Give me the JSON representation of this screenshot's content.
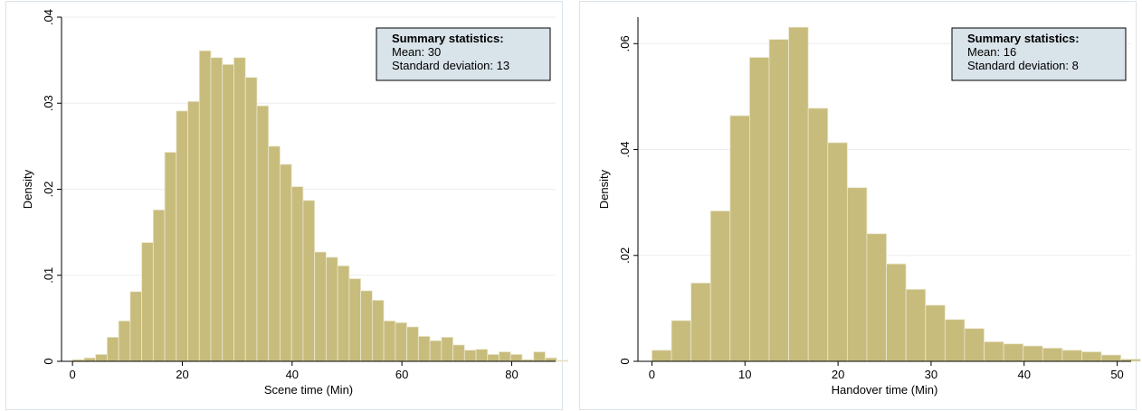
{
  "chart_data": [
    {
      "type": "bar",
      "title": "",
      "xlabel": "Scene time (Min)",
      "ylabel": "Density",
      "xlim": [
        -2,
        88
      ],
      "ylim": [
        0,
        0.04
      ],
      "x_ticks": [
        0,
        20,
        40,
        60,
        80
      ],
      "x_tick_labels": [
        "0",
        "20",
        "40",
        "60",
        "80"
      ],
      "y_ticks": [
        0,
        0.01,
        0.02,
        0.03,
        0.04
      ],
      "y_tick_labels": [
        "0",
        ".01",
        ".02",
        ".03",
        ".04"
      ],
      "grid": true,
      "bar_color": "#c8bc7c",
      "bin_start": 0,
      "bin_width": 2.1,
      "values": [
        0.0002,
        0.0004,
        0.0008,
        0.0028,
        0.0047,
        0.0081,
        0.0138,
        0.0176,
        0.0243,
        0.0291,
        0.0302,
        0.0361,
        0.0353,
        0.0345,
        0.0353,
        0.033,
        0.0297,
        0.025,
        0.0229,
        0.0203,
        0.0187,
        0.0127,
        0.0121,
        0.0111,
        0.0096,
        0.0082,
        0.0071,
        0.0047,
        0.0045,
        0.004,
        0.0029,
        0.0024,
        0.0028,
        0.0019,
        0.0013,
        0.0014,
        0.0008,
        0.0011,
        0.0008,
        0.0002,
        0.0011,
        0.0004,
        0.0001,
        0.0003,
        0.0001
      ],
      "summary": {
        "heading": "Summary statistics:",
        "lines": [
          "Mean: 30",
          "Standard deviation: 13"
        ]
      },
      "legend_placement": "top-right",
      "summary_box_color": "#d9e3ea"
    },
    {
      "type": "bar",
      "title": "",
      "xlabel": "Handover time (Min)",
      "ylabel": "Density",
      "xlim": [
        -1.5,
        51.5
      ],
      "ylim": [
        0,
        0.065
      ],
      "x_ticks": [
        0,
        10,
        20,
        30,
        40,
        50
      ],
      "x_tick_labels": [
        "0",
        "10",
        "20",
        "30",
        "40",
        "50"
      ],
      "y_ticks": [
        0,
        0.02,
        0.04,
        0.06
      ],
      "y_tick_labels": [
        "0",
        ".02",
        ".04",
        ".06"
      ],
      "grid": true,
      "bar_color": "#c8bc7c",
      "bin_start": 0,
      "bin_width": 2.1,
      "values": [
        0.0021,
        0.0077,
        0.0148,
        0.0284,
        0.0464,
        0.0574,
        0.0608,
        0.0631,
        0.0478,
        0.0413,
        0.0328,
        0.0241,
        0.0184,
        0.0136,
        0.0106,
        0.0079,
        0.0062,
        0.0037,
        0.0033,
        0.0029,
        0.0025,
        0.0021,
        0.0018,
        0.0012,
        0.0004
      ],
      "summary": {
        "heading": "Summary statistics:",
        "lines": [
          "Mean: 16",
          "Standard deviation: 8"
        ]
      },
      "legend_placement": "top-right",
      "summary_box_color": "#d9e3ea"
    }
  ]
}
